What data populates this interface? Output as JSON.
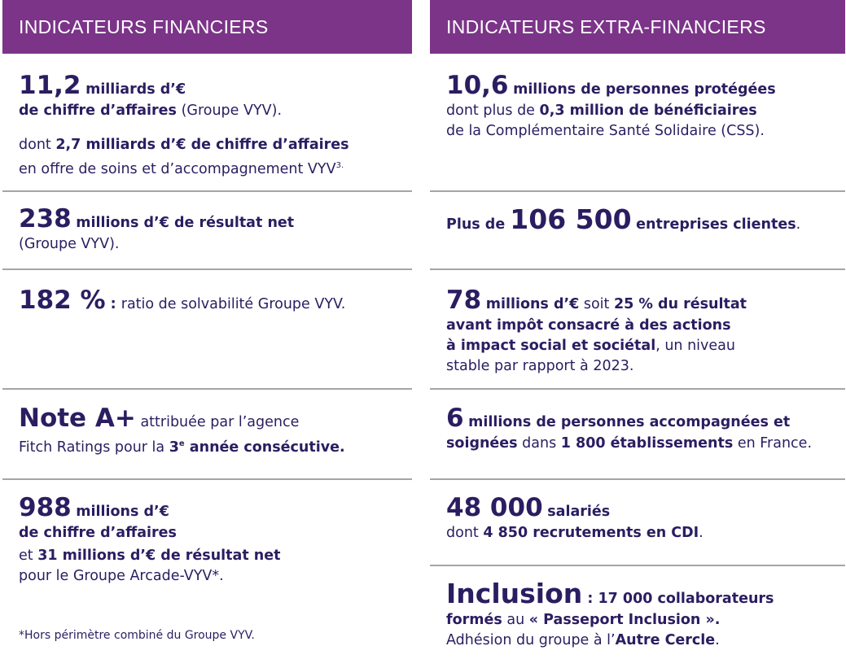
{
  "left": {
    "header": "INDICATEURS FINANCIERS",
    "k1": {
      "num": "11,2",
      "unit": "milliards d’€",
      "line2_b": "de chiffre d’affaires",
      "line2_n": "(Groupe VYV).",
      "line3_n": "dont ",
      "line3_b": "2,7 milliards d’€ de chiffre d’affaires",
      "line4_n": "en offre de soins et d’accompagnement VYV",
      "line4_sup": "3."
    },
    "k2": {
      "num": "238",
      "unit": "millions d’€ de résultat net",
      "line2": "(Groupe VYV)."
    },
    "k3": {
      "num": "182 %",
      "sep": " : ",
      "text": "ratio de solvabilité Groupe VYV."
    },
    "k4": {
      "num": "Note A+",
      "text": "attribuée par l’agence",
      "line2_n": "Fitch Ratings pour la ",
      "line2_b": "3",
      "line2_sup": "e",
      "line2_b2": " année consécutive."
    },
    "k5": {
      "num": "988",
      "unit": "millions d’€",
      "line2": "de chiffre d’affaires",
      "line3_n": "et ",
      "line3_b": "31 millions d’€ de résultat net",
      "line4": "pour le Groupe Arcade-VYV*."
    },
    "footnote": "*Hors périmètre combiné du Groupe VYV."
  },
  "right": {
    "header": "INDICATEURS EXTRA-FINANCIERS",
    "k1": {
      "num": "10,6",
      "unit": "millions de personnes protégées",
      "line2_n": "dont plus de ",
      "line2_b": "0,3 million de bénéficiaires",
      "line3": "de la Complémentaire Santé Solidaire (CSS)."
    },
    "k2": {
      "pre": "Plus de ",
      "num": "106 500",
      "post": "entreprises clientes",
      "end": "."
    },
    "k3": {
      "num": "78",
      "unit": "millions d’€",
      "unit_n": " soit ",
      "unit_b2": "25 % du résultat",
      "line2": "avant impôt consacré à des actions",
      "line3_b": "à impact social et sociétal",
      "line3_n": ", un niveau",
      "line4": "stable par rapport à 2023."
    },
    "k4": {
      "num": "6",
      "unit": "millions de personnes accompagnées et",
      "line2_b": "soignées",
      "line2_n": " dans ",
      "line2_b2": "1 800 établissements",
      "line2_n2": " en France."
    },
    "k5": {
      "num": "48 000",
      "unit": "salariés",
      "line2_n": "dont ",
      "line2_b": "4 850 recrutements en CDI",
      "line2_end": "."
    },
    "k6": {
      "num": "Inclusion",
      "unit": " : 17 000 collaborateurs",
      "line2_b": "formés",
      "line2_n": " au ",
      "line2_b2": "« Passeport Inclusion ».",
      "line3_n": "Adhésion du groupe à l’",
      "line3_b": "Autre Cercle",
      "line3_end": "."
    }
  }
}
